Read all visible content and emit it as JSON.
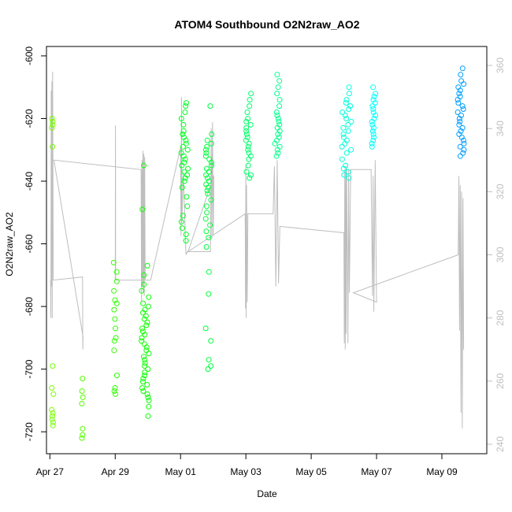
{
  "chart_data": {
    "type": "scatter",
    "title": "ATOM4 Southbound O2N2raw_AO2",
    "xlabel": "Date",
    "ylabel": "O2N2raw_AO2",
    "x_range": [
      "2023-04-26T21:30",
      "2023-05-10T09:00"
    ],
    "ylim": [
      -727,
      -597
    ],
    "y2lim": [
      237,
      366
    ],
    "x_ticks": [
      {
        "date": "2023-04-27",
        "label": "Apr 27"
      },
      {
        "date": "2023-04-29",
        "label": "Apr 29"
      },
      {
        "date": "2023-05-01",
        "label": "May 01"
      },
      {
        "date": "2023-05-03",
        "label": "May 03"
      },
      {
        "date": "2023-05-05",
        "label": "May 05"
      },
      {
        "date": "2023-05-07",
        "label": "May 07"
      },
      {
        "date": "2023-05-09",
        "label": "May 09"
      }
    ],
    "y_ticks": [
      -600,
      -620,
      -640,
      -660,
      -680,
      -700,
      -720
    ],
    "y2_ticks": [
      240,
      260,
      280,
      300,
      320,
      340,
      360
    ],
    "grid": false,
    "legend": "none",
    "colors": {
      "secondary_line": "#bebebe",
      "right_axis": "#bebebe",
      "point_palette": [
        "#80ff00",
        "#00ff00",
        "#00ff80",
        "#00ffff",
        "#0080ff"
      ]
    },
    "series": [
      {
        "marker": "open-circle",
        "color_by": "date",
        "clusters": [
          {
            "t": "2023-04-27T02:00",
            "spread_h": 1.5,
            "y": [
              -622,
              -621,
              -623,
              -620,
              -629,
              -699,
              -706,
              -708,
              -714,
              -715,
              -716,
              -717,
              -718,
              -713
            ]
          },
          {
            "t": "2023-04-28T00:00",
            "spread_h": 1.5,
            "y": [
              -703,
              -707,
              -709,
              -711,
              -719,
              -721,
              -722
            ]
          },
          {
            "t": "2023-04-29T00:00",
            "spread_h": 2.5,
            "y": [
              -666,
              -669,
              -672,
              -675,
              -678,
              -679,
              -681,
              -684,
              -687,
              -690,
              -691,
              -694,
              -702,
              -706,
              -707,
              -708
            ]
          },
          {
            "t": "2023-04-29T22:00",
            "spread_h": 6,
            "y": [
              -635,
              -649,
              -667,
              -670,
              -673,
              -675,
              -677,
              -679,
              -680,
              -681,
              -682,
              -683,
              -684,
              -685,
              -686,
              -687,
              -688,
              -689,
              -690,
              -691,
              -692,
              -693,
              -694,
              -695,
              -696,
              -697,
              -698,
              -699,
              -700,
              -701,
              -702,
              -703,
              -704,
              -705,
              -706,
              -707,
              -708,
              -709,
              -710,
              -712,
              -715
            ]
          },
          {
            "t": "2023-05-01T03:00",
            "spread_h": 5,
            "y": [
              -615,
              -616,
              -618,
              -620,
              -622,
              -624,
              -625,
              -626,
              -627,
              -628,
              -629,
              -630,
              -631,
              -632,
              -633,
              -634,
              -635,
              -636,
              -637,
              -638,
              -639,
              -640,
              -642,
              -645,
              -648,
              -651,
              -653,
              -655,
              -657,
              -659
            ]
          },
          {
            "t": "2023-05-01T21:00",
            "spread_h": 5,
            "y": [
              -616,
              -625,
              -627,
              -628,
              -629,
              -630,
              -631,
              -632,
              -633,
              -634,
              -635,
              -636,
              -637,
              -638,
              -639,
              -640,
              -641,
              -642,
              -643,
              -644,
              -646,
              -648,
              -650,
              -652,
              -654,
              -656,
              -658,
              -661,
              -669,
              -676,
              -687,
              -691,
              -697,
              -699,
              -700
            ]
          },
          {
            "t": "2023-05-03T02:00",
            "spread_h": 4,
            "y": [
              -612,
              -614,
              -616,
              -618,
              -620,
              -621,
              -622,
              -623,
              -624,
              -625,
              -626,
              -627,
              -628,
              -629,
              -630,
              -631,
              -632,
              -633,
              -635,
              -637,
              -638,
              -639
            ]
          },
          {
            "t": "2023-05-03T23:00",
            "spread_h": 4,
            "y": [
              -606,
              -608,
              -610,
              -612,
              -614,
              -616,
              -618,
              -619,
              -620,
              -621,
              -622,
              -623,
              -624,
              -625,
              -626,
              -627,
              -628,
              -629,
              -630,
              -631,
              -632
            ]
          },
          {
            "t": "2023-05-06T02:00",
            "spread_h": 7,
            "y": [
              -610,
              -612,
              -614,
              -615,
              -616,
              -617,
              -618,
              -619,
              -620,
              -621,
              -622,
              -623,
              -624,
              -625,
              -626,
              -627,
              -628,
              -629,
              -630,
              -631,
              -633,
              -635,
              -636,
              -637,
              -638,
              -639
            ]
          },
          {
            "t": "2023-05-06T22:00",
            "spread_h": 3,
            "y": [
              -610,
              -612,
              -613,
              -614,
              -615,
              -616,
              -617,
              -618,
              -619,
              -620,
              -621,
              -622,
              -623,
              -624,
              -625,
              -626,
              -627,
              -628,
              -629
            ]
          },
          {
            "t": "2023-05-09T14:00",
            "spread_h": 5,
            "y": [
              -604,
              -606,
              -608,
              -609,
              -610,
              -611,
              -612,
              -613,
              -614,
              -615,
              -616,
              -617,
              -618,
              -619,
              -620,
              -621,
              -622,
              -623,
              -624,
              -625,
              -626,
              -627,
              -628,
              -629,
              -630,
              -631,
              -632
            ]
          }
        ]
      },
      {
        "axis": "right",
        "type": "line",
        "color": "#bebebe",
        "points": [
          {
            "t": "2023-04-27T00:30",
            "y": 292
          },
          {
            "t": "2023-04-27T00:45",
            "y": 280
          },
          {
            "t": "2023-04-27T01:00",
            "y": 352
          },
          {
            "t": "2023-04-27T01:15",
            "y": 290
          },
          {
            "t": "2023-04-27T01:30",
            "y": 355
          },
          {
            "t": "2023-04-27T01:45",
            "y": 280
          },
          {
            "t": "2023-04-27T02:00",
            "y": 358
          },
          {
            "t": "2023-04-27T02:15",
            "y": 330
          },
          {
            "t": "2023-04-27T02:30",
            "y": 292
          },
          {
            "t": "2023-04-28T00:00",
            "y": 293
          },
          {
            "t": "2023-04-28T00:10",
            "y": 270
          },
          {
            "t": "2023-04-28T00:20",
            "y": 274
          },
          {
            "t": "2023-04-27T03:00",
            "y": 330
          },
          {
            "t": "2023-04-29T19:00",
            "y": 327
          },
          {
            "t": "2023-04-29T19:20",
            "y": 285
          },
          {
            "t": "2023-04-29T19:40",
            "y": 330
          },
          {
            "t": "2023-04-29T20:00",
            "y": 290
          },
          {
            "t": "2023-04-29T20:20",
            "y": 333
          },
          {
            "t": "2023-04-29T20:40",
            "y": 288
          },
          {
            "t": "2023-04-29T21:00",
            "y": 332
          },
          {
            "t": "2023-04-29T21:20",
            "y": 287
          },
          {
            "t": "2023-04-29T21:40",
            "y": 331
          },
          {
            "t": "2023-04-29T22:00",
            "y": 292
          },
          {
            "t": "2023-04-29T00:00",
            "y": 292
          },
          {
            "t": "2023-04-29T00:10",
            "y": 341
          },
          {
            "t": "2023-04-29T00:20",
            "y": 292
          },
          {
            "t": "2023-04-30T02:00",
            "y": 292
          },
          {
            "t": "2023-05-01T00:00",
            "y": 334
          },
          {
            "t": "2023-05-01T00:20",
            "y": 306
          },
          {
            "t": "2023-05-01T00:40",
            "y": 350
          },
          {
            "t": "2023-05-01T01:00",
            "y": 310
          },
          {
            "t": "2023-05-01T02:00",
            "y": 326
          },
          {
            "t": "2023-05-01T04:00",
            "y": 300
          },
          {
            "t": "2023-05-01T05:00",
            "y": 301
          },
          {
            "t": "2023-05-01T22:00",
            "y": 301
          },
          {
            "t": "2023-05-01T22:30",
            "y": 340
          },
          {
            "t": "2023-05-01T23:00",
            "y": 305
          },
          {
            "t": "2023-05-01T23:30",
            "y": 342
          },
          {
            "t": "2023-05-02T00:00",
            "y": 306
          },
          {
            "t": "2023-05-02T00:30",
            "y": 325
          },
          {
            "t": "2023-05-01T05:30",
            "y": 301
          },
          {
            "t": "2023-05-02T23:30",
            "y": 313
          },
          {
            "t": "2023-05-02T23:45",
            "y": 283
          },
          {
            "t": "2023-05-03T00:00",
            "y": 328
          },
          {
            "t": "2023-05-03T00:15",
            "y": 280
          },
          {
            "t": "2023-05-03T00:30",
            "y": 322
          },
          {
            "t": "2023-05-03T01:00",
            "y": 285
          },
          {
            "t": "2023-05-03T01:30",
            "y": 313
          },
          {
            "t": "2023-05-03T20:00",
            "y": 313
          },
          {
            "t": "2023-05-03T21:00",
            "y": 328
          },
          {
            "t": "2023-05-03T22:00",
            "y": 290
          },
          {
            "t": "2023-05-03T23:00",
            "y": 330
          },
          {
            "t": "2023-05-04T00:00",
            "y": 291
          },
          {
            "t": "2023-05-04T01:00",
            "y": 309
          },
          {
            "t": "2023-05-06T00:00",
            "y": 307
          },
          {
            "t": "2023-05-06T00:20",
            "y": 272
          },
          {
            "t": "2023-05-06T00:40",
            "y": 327
          },
          {
            "t": "2023-05-06T01:00",
            "y": 270
          },
          {
            "t": "2023-05-06T01:20",
            "y": 326
          },
          {
            "t": "2023-05-06T01:40",
            "y": 275
          },
          {
            "t": "2023-05-06T02:00",
            "y": 328
          },
          {
            "t": "2023-05-06T03:00",
            "y": 272
          },
          {
            "t": "2023-05-06T03:30",
            "y": 327
          },
          {
            "t": "2023-05-06T04:00",
            "y": 288
          },
          {
            "t": "2023-05-06T05:00",
            "y": 327
          },
          {
            "t": "2023-05-06T20:00",
            "y": 327
          },
          {
            "t": "2023-05-06T21:00",
            "y": 287
          },
          {
            "t": "2023-05-06T21:30",
            "y": 325
          },
          {
            "t": "2023-05-06T22:00",
            "y": 282
          },
          {
            "t": "2023-05-06T23:00",
            "y": 330
          },
          {
            "t": "2023-05-07T00:00",
            "y": 285
          },
          {
            "t": "2023-05-06T07:00",
            "y": 288
          },
          {
            "t": "2023-05-09T12:00",
            "y": 300
          },
          {
            "t": "2023-05-09T12:30",
            "y": 325
          },
          {
            "t": "2023-05-09T13:00",
            "y": 276
          },
          {
            "t": "2023-05-09T13:30",
            "y": 322
          },
          {
            "t": "2023-05-09T14:00",
            "y": 250
          },
          {
            "t": "2023-05-09T14:30",
            "y": 320
          },
          {
            "t": "2023-05-09T15:00",
            "y": 245
          },
          {
            "t": "2023-05-09T15:30",
            "y": 318
          },
          {
            "t": "2023-05-09T16:00",
            "y": 270
          }
        ]
      }
    ]
  }
}
